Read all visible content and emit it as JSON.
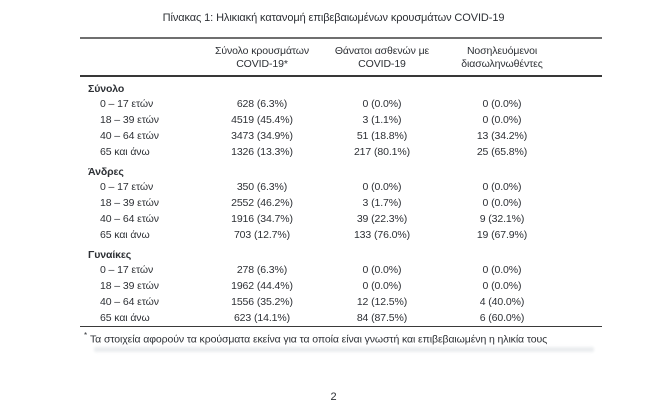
{
  "title": "Πίνακας 1: Ηλικιακή κατανομή επιβεβαιωμένων κρουσμάτων COVID-19",
  "table": {
    "columns": [
      {
        "line1": "Σύνολο κρουσμάτων",
        "line2": "COVID-19*"
      },
      {
        "line1": "Θάνατοι ασθενών με",
        "line2": "COVID-19"
      },
      {
        "line1": "Νοσηλευόμενοι",
        "line2": "διασωληνωθέντες"
      }
    ],
    "sections": [
      {
        "label": "Σύνολο",
        "rows": [
          {
            "label": "0 – 17 ετών",
            "cases": "628 (6.3%)",
            "deaths": "0 (0.0%)",
            "intubated": "0 (0.0%)"
          },
          {
            "label": "18 – 39 ετών",
            "cases": "4519 (45.4%)",
            "deaths": "3 (1.1%)",
            "intubated": "0 (0.0%)"
          },
          {
            "label": "40 – 64 ετών",
            "cases": "3473 (34.9%)",
            "deaths": "51 (18.8%)",
            "intubated": "13 (34.2%)"
          },
          {
            "label": "65 και άνω",
            "cases": "1326 (13.3%)",
            "deaths": "217 (80.1%)",
            "intubated": "25 (65.8%)"
          }
        ]
      },
      {
        "label": "Άνδρες",
        "rows": [
          {
            "label": "0 – 17 ετών",
            "cases": "350 (6.3%)",
            "deaths": "0 (0.0%)",
            "intubated": "0 (0.0%)"
          },
          {
            "label": "18 – 39 ετών",
            "cases": "2552 (46.2%)",
            "deaths": "3 (1.7%)",
            "intubated": "0 (0.0%)"
          },
          {
            "label": "40 – 64 ετών",
            "cases": "1916 (34.7%)",
            "deaths": "39 (22.3%)",
            "intubated": "9 (32.1%)"
          },
          {
            "label": "65 και άνω",
            "cases": "703 (12.7%)",
            "deaths": "133 (76.0%)",
            "intubated": "19 (67.9%)"
          }
        ]
      },
      {
        "label": "Γυναίκες",
        "rows": [
          {
            "label": "0 – 17 ετών",
            "cases": "278 (6.3%)",
            "deaths": "0 (0.0%)",
            "intubated": "0 (0.0%)"
          },
          {
            "label": "18 – 39 ετών",
            "cases": "1962 (44.4%)",
            "deaths": "0 (0.0%)",
            "intubated": "0 (0.0%)"
          },
          {
            "label": "40 – 64 ετών",
            "cases": "1556 (35.2%)",
            "deaths": "12 (12.5%)",
            "intubated": "4 (40.0%)"
          },
          {
            "label": "65 και άνω",
            "cases": "623 (14.1%)",
            "deaths": "84 (87.5%)",
            "intubated": "6 (60.0%)"
          }
        ]
      }
    ]
  },
  "footnote": {
    "marker": "*",
    "text": "Τα στοιχεία αφορούν τα κρούσματα εκείνα για τα οποία είναι γνωστή και επιβεβαιωμένη η ηλικία τους"
  },
  "page_number": "2",
  "colors": {
    "text": "#2d3035",
    "rule_top": "#6f6f6f",
    "rule_header_bottom": "#383838",
    "rule_table_bottom": "#3a3a3a",
    "background": "#ffffff"
  }
}
